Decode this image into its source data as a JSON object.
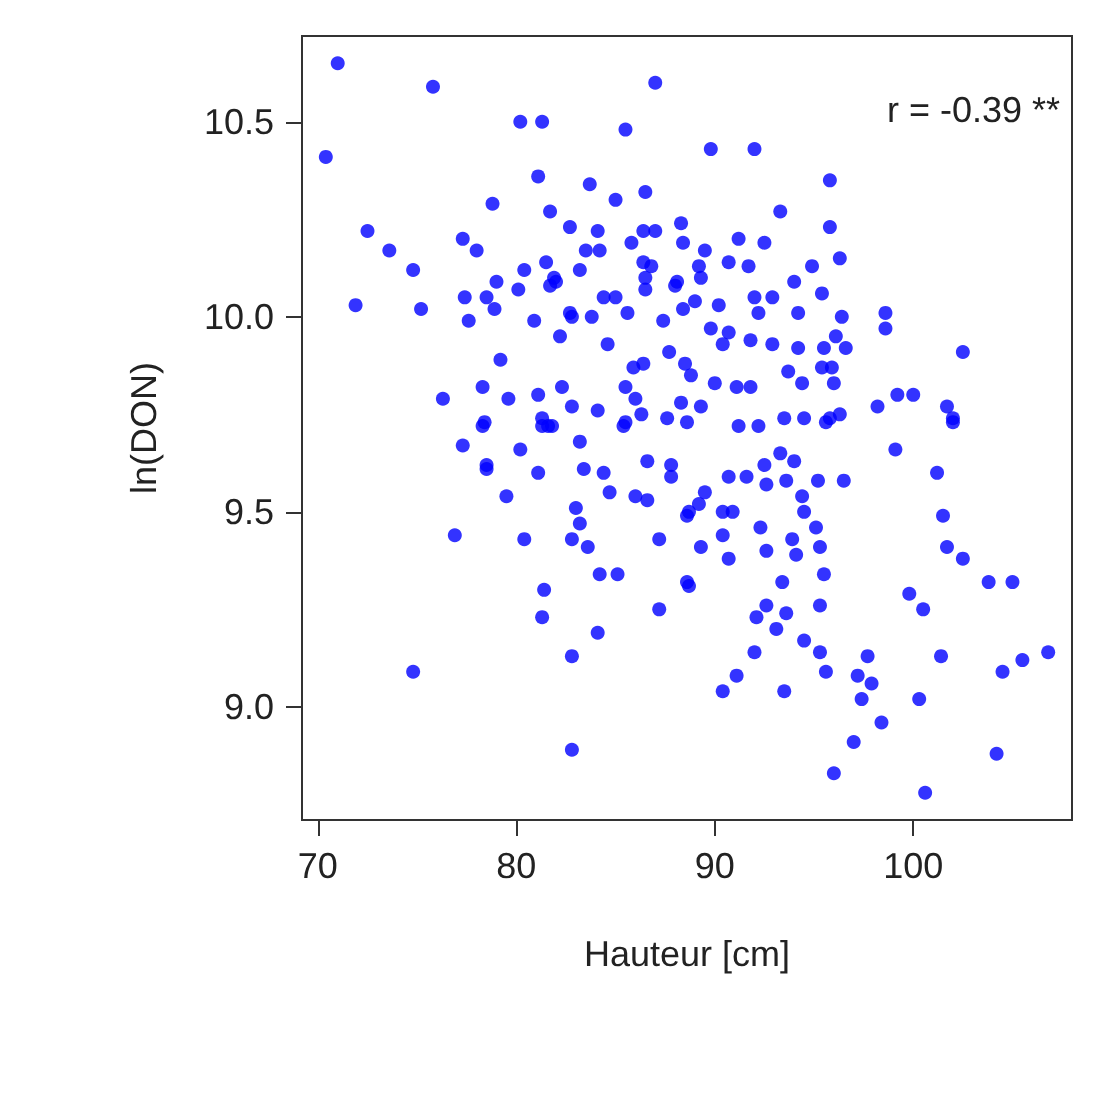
{
  "chart_data": {
    "type": "scatter",
    "xlabel": "Hauteur [cm]",
    "ylabel": "ln(DON)",
    "annotations": [
      "r = -0.39 **"
    ],
    "color": "#0000ff",
    "marker": "circle",
    "grid": false,
    "xlim": [
      69.2,
      108
    ],
    "ylim": [
      8.71,
      10.72
    ],
    "xticks": [
      70,
      80,
      90,
      100
    ],
    "yticks": [
      {
        "value": 9,
        "label": "9.0"
      },
      {
        "value": 9.5,
        "label": "9.5"
      },
      {
        "value": 10,
        "label": "10.0"
      },
      {
        "value": 10.5,
        "label": "10.5"
      }
    ],
    "x": [
      71.0,
      70.4,
      75.8,
      80.2,
      81.3,
      87.0,
      85.5,
      81.1,
      83.7,
      86.5,
      85.0,
      78.8,
      81.7,
      82.7,
      84.1,
      72.5,
      73.6,
      77.3,
      78.0,
      74.8,
      71.9,
      75.2,
      77.4,
      77.6,
      78.5,
      78.9,
      79.0,
      80.1,
      80.4,
      81.5,
      82.0,
      83.2,
      82.2,
      80.9,
      82.7,
      83.8,
      84.6,
      84.4,
      85.0,
      85.6,
      83.5,
      84.2,
      85.8,
      86.4,
      87.0,
      88.3,
      88.4,
      86.4,
      86.8,
      86.5,
      86.5,
      88.1,
      88.4,
      87.4,
      87.7,
      85.9,
      86.4,
      85.5,
      86.0,
      86.3,
      85.5,
      88.3,
      88.6,
      87.6,
      84.1,
      82.8,
      82.3,
      81.1,
      79.6,
      78.3,
      76.3,
      79.2,
      81.7,
      81.9,
      82.8,
      81.3,
      81.6,
      78.4,
      89.8,
      92.0,
      95.8,
      93.3,
      95.8,
      96.3,
      89.5,
      91.2,
      92.5,
      90.7,
      91.7,
      89.2,
      89.3,
      94.0,
      94.9,
      95.4,
      92.0,
      92.9,
      92.2,
      94.2,
      96.4,
      98.6,
      98.6,
      102.5,
      90.2,
      89.0,
      89.8,
      90.7,
      90.4,
      91.8,
      92.9,
      94.2,
      95.5,
      96.6,
      96.1,
      93.7,
      94.4,
      95.4,
      95.9,
      96.0,
      91.1,
      91.8,
      90.0,
      88.8,
      89.3,
      98.2,
      99.2,
      100.0,
      101.7,
      102.0,
      93.5,
      94.5,
      95.8,
      96.3,
      91.2,
      92.2,
      88.5,
      88.0,
      77.3,
      78.5,
      78.5,
      80.2,
      81.1,
      79.5,
      76.9,
      80.4,
      74.8,
      82.8,
      83.6,
      83.0,
      83.2,
      83.2,
      83.4,
      84.4,
      84.7,
      86.6,
      86.0,
      86.6,
      87.8,
      87.8,
      88.6,
      87.2,
      87.2,
      84.2,
      85.1,
      81.4,
      81.3,
      84.1,
      82.8,
      82.8,
      88.6,
      78.3,
      81.3,
      81.8,
      85.4,
      99.1,
      101.2,
      101.5,
      101.7,
      102.5,
      103.8,
      105.0,
      99.8,
      100.5,
      101.4,
      106.8,
      105.5,
      104.5,
      104.2,
      100.6,
      100.3,
      97.7,
      97.2,
      97.9,
      97.4,
      98.4,
      97.0,
      96.0,
      93.5,
      90.4,
      91.1,
      92.0,
      94.5,
      95.3,
      95.6,
      92.1,
      92.6,
      93.6,
      93.1,
      95.3,
      95.5,
      93.4,
      88.7,
      89.3,
      90.4,
      90.7,
      92.6,
      93.9,
      94.1,
      95.3,
      95.1,
      92.3,
      94.5,
      94.4,
      95.2,
      96.5,
      93.6,
      92.6,
      90.7,
      91.6,
      94.0,
      92.5,
      93.3,
      95.6,
      102.0,
      88.7,
      89.5,
      89.2,
      90.9,
      90.4
    ],
    "values": [
      10.65,
      10.41,
      10.59,
      10.5,
      10.5,
      10.6,
      10.48,
      10.36,
      10.34,
      10.32,
      10.3,
      10.29,
      10.27,
      10.23,
      10.22,
      10.22,
      10.17,
      10.2,
      10.17,
      10.12,
      10.03,
      10.02,
      10.05,
      9.99,
      10.05,
      10.02,
      10.09,
      10.07,
      10.12,
      10.14,
      10.09,
      10.12,
      9.95,
      9.99,
      10.01,
      10.0,
      9.93,
      10.05,
      10.05,
      10.01,
      10.17,
      10.17,
      10.19,
      10.22,
      10.22,
      10.24,
      10.19,
      10.14,
      10.13,
      10.1,
      10.07,
      10.09,
      10.02,
      9.99,
      9.91,
      9.87,
      9.88,
      9.82,
      9.79,
      9.75,
      9.73,
      9.78,
      9.73,
      9.74,
      9.76,
      9.77,
      9.82,
      9.8,
      9.79,
      9.82,
      9.79,
      9.89,
      10.08,
      10.1,
      10.0,
      9.74,
      9.72,
      9.73,
      10.43,
      10.43,
      10.35,
      10.27,
      10.23,
      10.15,
      10.17,
      10.2,
      10.19,
      10.14,
      10.13,
      10.13,
      10.1,
      10.09,
      10.13,
      10.06,
      10.05,
      10.05,
      10.01,
      10.01,
      10.0,
      10.01,
      9.97,
      9.91,
      10.03,
      10.04,
      9.97,
      9.96,
      9.93,
      9.94,
      9.93,
      9.92,
      9.92,
      9.92,
      9.95,
      9.86,
      9.83,
      9.87,
      9.87,
      9.83,
      9.82,
      9.82,
      9.83,
      9.85,
      9.77,
      9.77,
      9.8,
      9.8,
      9.77,
      9.74,
      9.74,
      9.74,
      9.74,
      9.75,
      9.72,
      9.72,
      9.88,
      10.08,
      9.67,
      9.62,
      9.61,
      9.66,
      9.6,
      9.54,
      9.44,
      9.43,
      9.09,
      9.43,
      9.41,
      9.51,
      9.47,
      9.68,
      9.61,
      9.6,
      9.55,
      9.63,
      9.54,
      9.53,
      9.62,
      9.59,
      9.49,
      9.43,
      9.25,
      9.34,
      9.34,
      9.3,
      9.23,
      9.19,
      9.13,
      8.89,
      9.32,
      9.72,
      9.72,
      9.72,
      9.72,
      9.66,
      9.6,
      9.49,
      9.41,
      9.38,
      9.32,
      9.32,
      9.29,
      9.25,
      9.13,
      9.14,
      9.12,
      9.09,
      8.88,
      8.78,
      9.02,
      9.13,
      9.08,
      9.06,
      9.02,
      8.96,
      8.91,
      8.83,
      9.04,
      9.04,
      9.08,
      9.14,
      9.17,
      9.14,
      9.09,
      9.23,
      9.26,
      9.24,
      9.2,
      9.26,
      9.34,
      9.32,
      9.31,
      9.41,
      9.44,
      9.38,
      9.4,
      9.43,
      9.39,
      9.41,
      9.46,
      9.46,
      9.5,
      9.54,
      9.58,
      9.58,
      9.58,
      9.57,
      9.59,
      9.59,
      9.63,
      9.62,
      9.65,
      9.73,
      9.73,
      9.5,
      9.55,
      9.52,
      9.5,
      9.5
    ]
  }
}
